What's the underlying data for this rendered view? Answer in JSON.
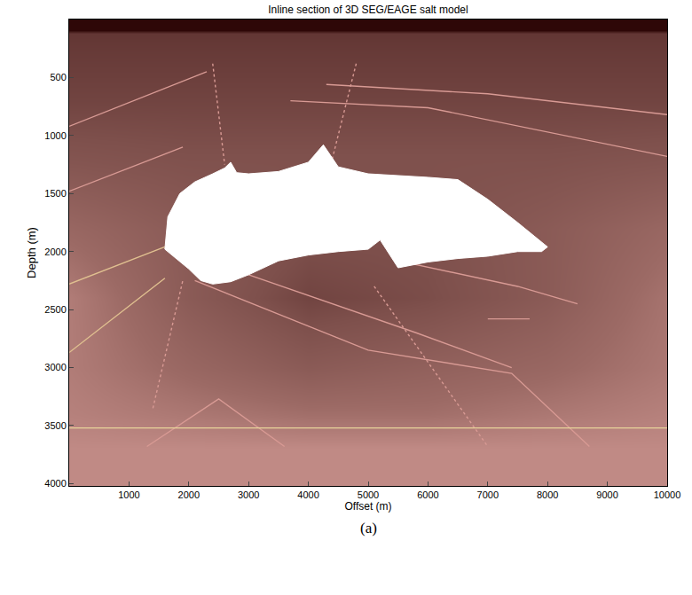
{
  "chart_data": {
    "type": "heatmap",
    "title": "Inline section of 3D SEG/EAGE salt model",
    "x_label": "Offset (m)",
    "y_label": "Depth (m)",
    "caption": "(a)",
    "xlim": [
      0,
      10000
    ],
    "ylim": [
      4020,
      0
    ],
    "xticks": [
      1000,
      2000,
      3000,
      4000,
      5000,
      6000,
      7000,
      8000,
      9000,
      10000
    ],
    "yticks": [
      500,
      1000,
      1500,
      2000,
      2500,
      3000,
      3500,
      4000
    ],
    "cells": {
      "x": [
        0,
        2000,
        4000,
        6000,
        8000,
        10000
      ],
      "y": [
        0,
        90,
        120,
        300,
        700,
        1200,
        1800,
        2400,
        3000,
        3400,
        3700,
        4020
      ],
      "z": [
        [
          1500,
          1500,
          1500,
          1500,
          1500,
          1500
        ],
        [
          1500,
          1500,
          1500,
          1500,
          1500,
          1500
        ],
        [
          1850,
          1850,
          1850,
          1850,
          1850,
          1850
        ],
        [
          1900,
          1900,
          1900,
          1900,
          1900,
          1900
        ],
        [
          2000,
          2000,
          2000,
          2000,
          2000,
          2000
        ],
        [
          2200,
          2150,
          2150,
          2150,
          2150,
          2200
        ],
        [
          2500,
          2300,
          2150,
          2150,
          2300,
          2500
        ],
        [
          2750,
          2300,
          2000,
          2100,
          2300,
          2650
        ],
        [
          2750,
          2500,
          2300,
          2400,
          2500,
          2700
        ],
        [
          2800,
          2700,
          2600,
          2600,
          2700,
          2800
        ],
        [
          2900,
          2900,
          2900,
          2900,
          2900,
          2900
        ],
        [
          2900,
          2900,
          2900,
          2900,
          2900,
          2900
        ]
      ]
    },
    "salt_body": {
      "color": "#ffffff",
      "x": [
        1600,
        1650,
        1850,
        2100,
        2400,
        2600,
        2700,
        2800,
        3000,
        3500,
        4000,
        4250,
        4500,
        5000,
        6000,
        6500,
        7000,
        7500,
        8000,
        7900,
        7500,
        7000,
        6500,
        6000,
        5500,
        5200,
        5000,
        4500,
        4000,
        3500,
        3000,
        2700,
        2400,
        2200,
        2000,
        1600
      ],
      "y": [
        1980,
        1700,
        1500,
        1400,
        1330,
        1280,
        1230,
        1320,
        1330,
        1310,
        1230,
        1080,
        1270,
        1330,
        1360,
        1380,
        1550,
        1750,
        1960,
        2000,
        2000,
        2040,
        2060,
        2090,
        2140,
        1900,
        1980,
        2000,
        2030,
        2080,
        2200,
        2260,
        2280,
        2250,
        2150,
        1980
      ]
    },
    "series": [
      {
        "color": "#d89a94",
        "line_style": "solid",
        "x": [
          0,
          2300
        ],
        "y": [
          920,
          450
        ]
      },
      {
        "color": "#d89a94",
        "line_style": "solid",
        "x": [
          0,
          1900
        ],
        "y": [
          1480,
          1100
        ]
      },
      {
        "color": "#e0c090",
        "line_style": "solid",
        "x": [
          0,
          1600
        ],
        "y": [
          2280,
          1960
        ]
      },
      {
        "color": "#e0c090",
        "line_style": "solid",
        "x": [
          0,
          1600
        ],
        "y": [
          2870,
          2230
        ]
      },
      {
        "color": "#d89a94",
        "line_style": "solid",
        "x": [
          3700,
          6000,
          10000
        ],
        "y": [
          700,
          760,
          1180
        ]
      },
      {
        "color": "#d89a94",
        "line_style": "solid",
        "x": [
          4300,
          7000,
          10000
        ],
        "y": [
          560,
          640,
          820
        ]
      },
      {
        "color": "#d89a94",
        "line_style": "dotted",
        "x": [
          2400,
          2600
        ],
        "y": [
          380,
          1250
        ]
      },
      {
        "color": "#d89a94",
        "line_style": "dotted",
        "x": [
          4800,
          4400
        ],
        "y": [
          380,
          1200
        ]
      },
      {
        "color": "#d89a94",
        "line_style": "solid",
        "x": [
          2100,
          5000,
          7400,
          8700
        ],
        "y": [
          2250,
          2850,
          3050,
          3680
        ]
      },
      {
        "color": "#d89a94",
        "line_style": "solid",
        "x": [
          3000,
          5800,
          7400
        ],
        "y": [
          2200,
          2700,
          3000
        ]
      },
      {
        "color": "#d89a94",
        "line_style": "dotted",
        "x": [
          5100,
          7000
        ],
        "y": [
          2300,
          3680
        ]
      },
      {
        "color": "#d89a94",
        "line_style": "dotted",
        "x": [
          1400,
          1900
        ],
        "y": [
          3350,
          2250
        ]
      },
      {
        "color": "#d89a94",
        "line_style": "solid",
        "x": [
          1300,
          2500,
          3600
        ],
        "y": [
          3680,
          3270,
          3680
        ]
      },
      {
        "color": "#d89a94",
        "line_style": "solid",
        "x": [
          5500,
          7500,
          8500
        ],
        "y": [
          2080,
          2300,
          2450
        ]
      },
      {
        "color": "#d89a94",
        "line_style": "solid",
        "x": [
          7000,
          7700
        ],
        "y": [
          2580,
          2580
        ]
      },
      {
        "color": "#e8d49a",
        "line_style": "solid",
        "x": [
          0,
          10000
        ],
        "y": [
          3520,
          3520
        ]
      }
    ]
  }
}
